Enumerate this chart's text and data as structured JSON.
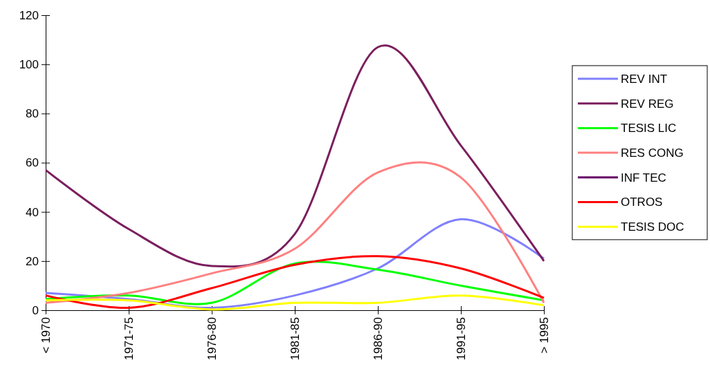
{
  "chart_data": {
    "type": "line",
    "categories": [
      "< 1970",
      "1971-75",
      "1976-80",
      "1981-85",
      "1986-90",
      "1991-95",
      "> 1995"
    ],
    "ylim": [
      0,
      120
    ],
    "yticks": [
      0,
      20,
      40,
      60,
      80,
      100,
      120
    ],
    "grid": false,
    "legend": "right",
    "line_style": "solid",
    "marker": "none",
    "series": [
      {
        "name": "REV INT",
        "color": "#8080ff",
        "values": [
          7,
          4.5,
          1,
          6,
          17,
          37,
          21
        ]
      },
      {
        "name": "REV REG",
        "color": "#7b1f5e",
        "values": [
          57,
          33,
          18,
          31,
          107,
          67,
          20
        ]
      },
      {
        "name": "TESIS LIC",
        "color": "#00ff00",
        "values": [
          4.5,
          6,
          3,
          19,
          16.5,
          10,
          4
        ]
      },
      {
        "name": "RES CONG",
        "color": "#ff8080",
        "values": [
          3,
          7,
          15,
          25,
          56,
          54,
          3
        ]
      },
      {
        "name": "INF TEC",
        "color": "#660066",
        "values": [
          null,
          null,
          null,
          null,
          null,
          null,
          null
        ]
      },
      {
        "name": "OTROS",
        "color": "#ff0000",
        "values": [
          6,
          1,
          9,
          18.5,
          22,
          17,
          5
        ]
      },
      {
        "name": "TESIS DOC",
        "color": "#ffff00",
        "values": [
          4,
          4,
          0.3,
          3,
          3,
          6,
          2
        ]
      }
    ]
  }
}
